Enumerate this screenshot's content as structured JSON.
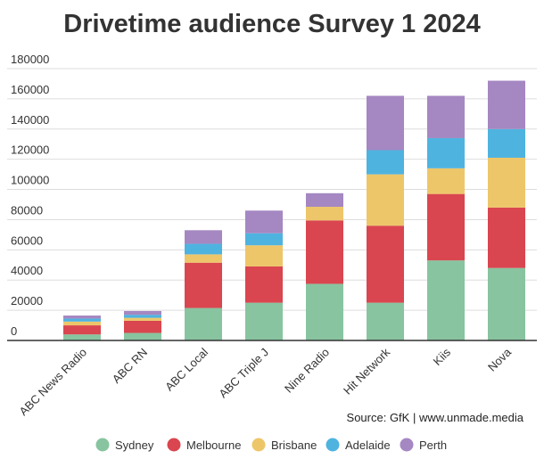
{
  "chart_data": {
    "type": "bar",
    "stacked": true,
    "title": "Drivetime audience Survey 1 2024",
    "xlabel": "",
    "ylabel": "",
    "ylim": [
      0,
      180000
    ],
    "yticks": [
      0,
      20000,
      40000,
      60000,
      80000,
      100000,
      120000,
      140000,
      160000,
      180000
    ],
    "grid": true,
    "legend_position": "bottom",
    "categories": [
      "ABC News Radio",
      "ABC RN",
      "ABC Local",
      "ABC Triple J",
      "Nine Radio",
      "Hit Network",
      "Kiis",
      "Nova"
    ],
    "series": [
      {
        "name": "Sydney",
        "color": "#88c4a0",
        "values": [
          4000,
          5000,
          21500,
          25000,
          37500,
          25000,
          53000,
          48000
        ]
      },
      {
        "name": "Melbourne",
        "color": "#d9464f",
        "values": [
          6000,
          8000,
          30000,
          24000,
          42000,
          51000,
          44000,
          40000
        ]
      },
      {
        "name": "Brisbane",
        "color": "#eec66a",
        "values": [
          2500,
          2000,
          5500,
          14000,
          9000,
          34000,
          17000,
          33000
        ]
      },
      {
        "name": "Adelaide",
        "color": "#4fb3e0",
        "values": [
          2000,
          2000,
          7000,
          8000,
          0,
          16000,
          20000,
          19000
        ]
      },
      {
        "name": "Perth",
        "color": "#a587c2",
        "values": [
          2000,
          2500,
          9000,
          15000,
          9000,
          36000,
          28000,
          32000
        ]
      }
    ],
    "source": "Source: GfK | www.unmade.media"
  }
}
